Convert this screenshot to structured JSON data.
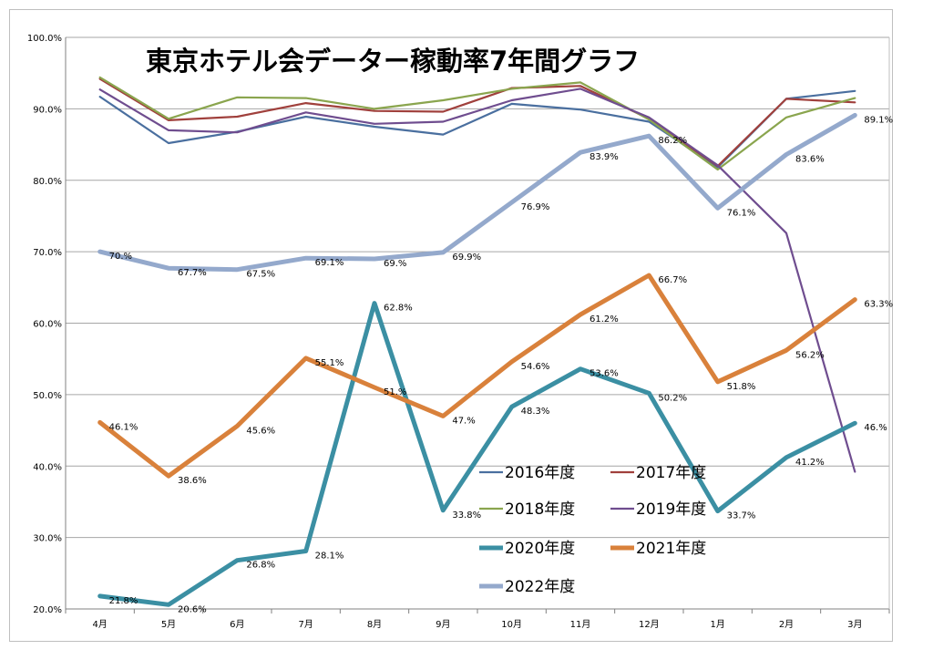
{
  "chart_data": {
    "type": "line",
    "title": "東京ホテル会データー稼動率7年間グラフ",
    "xlabel": "",
    "ylabel": "",
    "categories": [
      "4月",
      "5月",
      "6月",
      "7月",
      "8月",
      "9月",
      "10月",
      "11月",
      "12月",
      "1月",
      "2月",
      "3月"
    ],
    "ylim": [
      20,
      100
    ],
    "yticks": [
      "20.0%",
      "30.0%",
      "40.0%",
      "50.0%",
      "60.0%",
      "70.0%",
      "80.0%",
      "90.0%",
      "100.0%"
    ],
    "grid": true,
    "legend_position": "center-right",
    "series": [
      {
        "name": "2016年度",
        "color": "#4a6f9f",
        "width": 2.2,
        "values": [
          91.7,
          85.2,
          86.8,
          88.9,
          87.5,
          86.4,
          90.7,
          89.9,
          88.2,
          81.8,
          91.4,
          92.5
        ],
        "labels": []
      },
      {
        "name": "2017年度",
        "color": "#a0403c",
        "width": 2.2,
        "values": [
          94.2,
          88.4,
          88.9,
          90.8,
          89.7,
          89.6,
          92.9,
          93.2,
          88.6,
          82.0,
          91.4,
          90.9
        ],
        "labels": []
      },
      {
        "name": "2018年度",
        "color": "#8aa54e",
        "width": 2.2,
        "values": [
          94.4,
          88.6,
          91.6,
          91.5,
          90.0,
          91.2,
          92.8,
          93.7,
          88.5,
          81.5,
          88.8,
          91.5
        ],
        "labels": []
      },
      {
        "name": "2019年度",
        "color": "#6f4d8f",
        "width": 2.2,
        "values": [
          92.7,
          87.0,
          86.7,
          89.5,
          87.9,
          88.2,
          91.2,
          92.8,
          88.8,
          82.1,
          72.6,
          39.2
        ],
        "labels": []
      },
      {
        "name": "2020年度",
        "color": "#3b8fa3",
        "width": 5,
        "values": [
          21.8,
          20.6,
          26.8,
          28.1,
          62.8,
          33.8,
          48.3,
          53.6,
          50.2,
          33.7,
          41.2,
          46.0
        ],
        "labels": [
          "21.8%",
          "20.6%",
          "26.8%",
          "28.1%",
          "62.8%",
          "33.8%",
          "48.3%",
          "53.6%",
          "50.2%",
          "33.7%",
          "41.2%",
          "46.%"
        ]
      },
      {
        "name": "2021年度",
        "color": "#d9813b",
        "width": 5,
        "values": [
          46.1,
          38.6,
          45.6,
          55.1,
          51.0,
          47.0,
          54.6,
          61.2,
          66.7,
          51.8,
          56.2,
          63.3
        ],
        "labels": [
          "46.1%",
          "38.6%",
          "45.6%",
          "55.1%",
          "51.%",
          "47.%",
          "54.6%",
          "61.2%",
          "66.7%",
          "51.8%",
          "56.2%",
          "63.3%"
        ]
      },
      {
        "name": "2022年度",
        "color": "#94a9cc",
        "width": 5,
        "values": [
          70.0,
          67.7,
          67.5,
          69.1,
          69.0,
          69.9,
          76.9,
          83.9,
          86.2,
          76.1,
          83.6,
          89.1
        ],
        "labels": [
          "70.%",
          "67.7%",
          "67.5%",
          "69.1%",
          "69.%",
          "69.9%",
          "76.9%",
          "83.9%",
          "86.2%",
          "76.1%",
          "83.6%",
          "89.1%"
        ]
      }
    ]
  }
}
